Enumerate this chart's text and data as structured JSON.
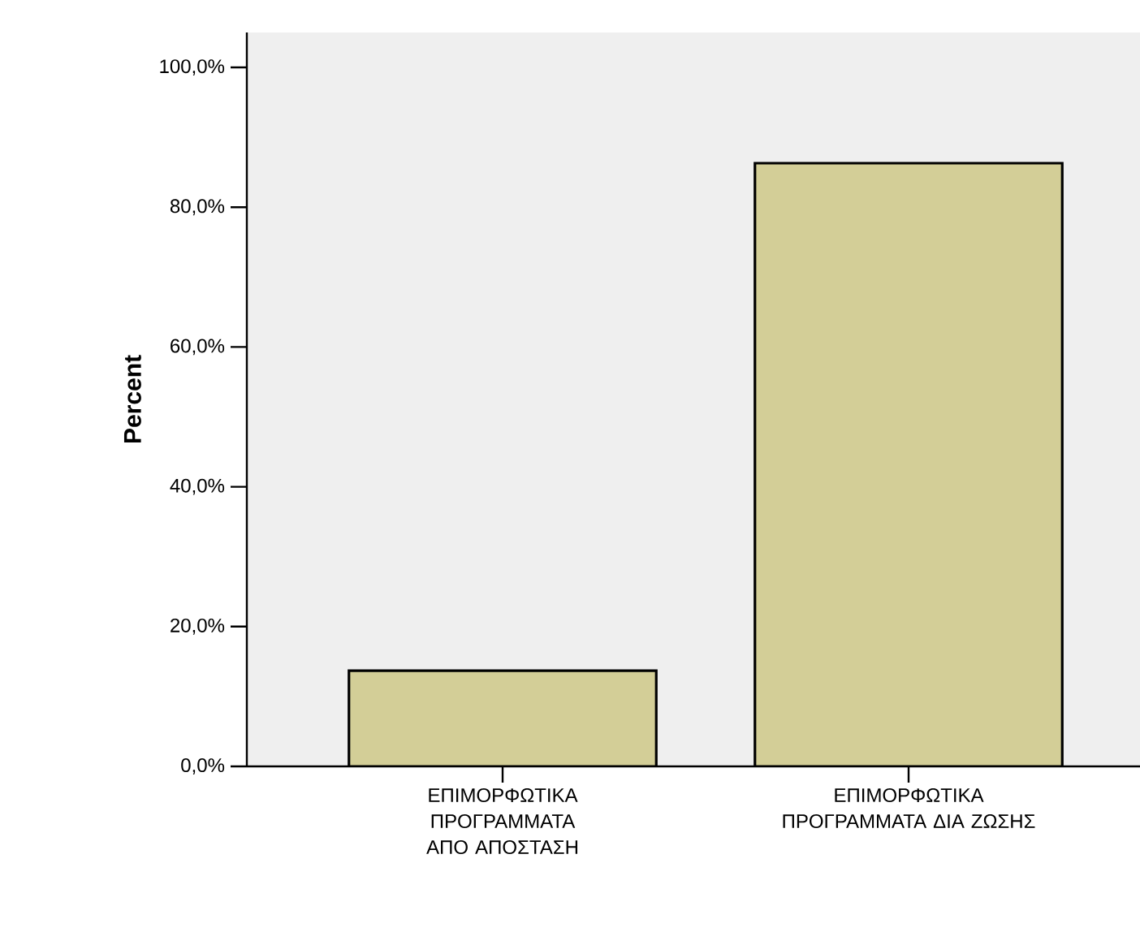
{
  "chart_data": {
    "type": "bar",
    "ylabel": "Percent",
    "categories": [
      "ΕΠΙΜΟΡΦΩΤΙΚΑ ΠΡΟΓΡΑΜΜΑΤΑ ΑΠΟ ΑΠΟΣΤΑΣΗ",
      "ΕΠΙΜΟΡΦΩΤΙΚΑ ΠΡΟΓΡΑΜΜΑΤΑ ΔΙΑ ΖΩΣΗΣ"
    ],
    "values": [
      13.7,
      86.3
    ],
    "color": "#d3ce97",
    "ylim": [
      0,
      105
    ],
    "yticks": [
      {
        "value": 0,
        "label": "0,0%"
      },
      {
        "value": 20,
        "label": "20,0%"
      },
      {
        "value": 40,
        "label": "40,0%"
      },
      {
        "value": 60,
        "label": "60,0%"
      },
      {
        "value": 80,
        "label": "80,0%"
      },
      {
        "value": 100,
        "label": "100,0%"
      }
    ],
    "grid": false
  }
}
